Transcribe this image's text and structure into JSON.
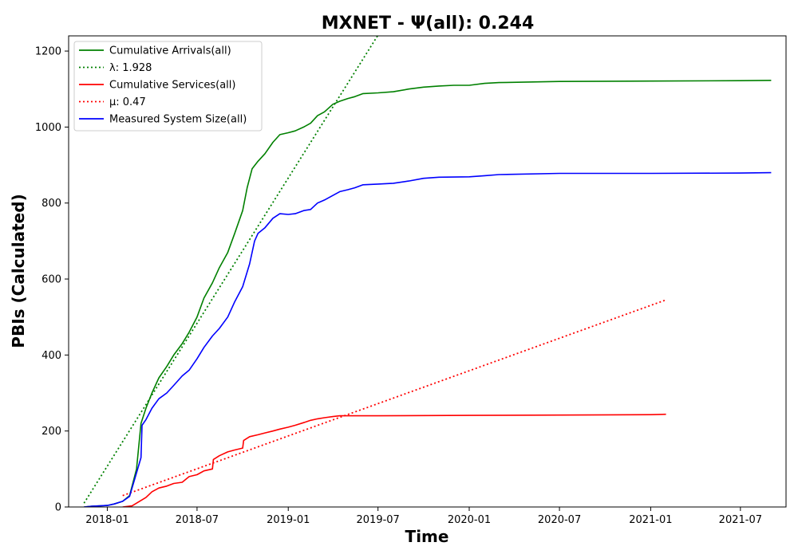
{
  "chart_data": {
    "type": "line",
    "title": "MXNET -  Ψ(all): 0.244",
    "xlabel": "Time",
    "ylabel": "PBIs (Calculated)",
    "xlim": [
      "2017-10-15",
      "2021-10-01"
    ],
    "ylim": [
      0,
      1240
    ],
    "x_ticks": [
      "2018-01",
      "2018-07",
      "2019-01",
      "2019-07",
      "2020-01",
      "2020-07",
      "2021-01",
      "2021-07"
    ],
    "y_ticks": [
      0,
      200,
      400,
      600,
      800,
      1000,
      1200
    ],
    "grid": false,
    "legend_position": "top-left",
    "series": [
      {
        "name": "Cumulative Arrivals(all)",
        "color": "#008000",
        "style": "solid",
        "points": [
          [
            "2017-11-15",
            0
          ],
          [
            "2017-12-01",
            2
          ],
          [
            "2018-01-01",
            4
          ],
          [
            "2018-01-15",
            8
          ],
          [
            "2018-02-01",
            15
          ],
          [
            "2018-02-15",
            30
          ],
          [
            "2018-03-01",
            100
          ],
          [
            "2018-03-10",
            220
          ],
          [
            "2018-03-20",
            260
          ],
          [
            "2018-04-01",
            300
          ],
          [
            "2018-04-15",
            340
          ],
          [
            "2018-05-01",
            370
          ],
          [
            "2018-05-15",
            400
          ],
          [
            "2018-06-01",
            430
          ],
          [
            "2018-06-15",
            460
          ],
          [
            "2018-07-01",
            500
          ],
          [
            "2018-07-15",
            550
          ],
          [
            "2018-08-01",
            590
          ],
          [
            "2018-08-15",
            630
          ],
          [
            "2018-09-01",
            670
          ],
          [
            "2018-09-15",
            720
          ],
          [
            "2018-10-01",
            780
          ],
          [
            "2018-10-10",
            840
          ],
          [
            "2018-10-20",
            890
          ],
          [
            "2018-11-01",
            910
          ],
          [
            "2018-11-15",
            930
          ],
          [
            "2018-12-01",
            960
          ],
          [
            "2018-12-15",
            980
          ],
          [
            "2019-01-01",
            985
          ],
          [
            "2019-01-15",
            990
          ],
          [
            "2019-02-01",
            1000
          ],
          [
            "2019-02-15",
            1010
          ],
          [
            "2019-03-01",
            1030
          ],
          [
            "2019-03-15",
            1040
          ],
          [
            "2019-04-01",
            1060
          ],
          [
            "2019-04-15",
            1068
          ],
          [
            "2019-05-01",
            1075
          ],
          [
            "2019-05-15",
            1080
          ],
          [
            "2019-06-01",
            1088
          ],
          [
            "2019-07-01",
            1090
          ],
          [
            "2019-08-01",
            1093
          ],
          [
            "2019-09-01",
            1100
          ],
          [
            "2019-10-01",
            1105
          ],
          [
            "2019-11-01",
            1108
          ],
          [
            "2019-12-01",
            1110
          ],
          [
            "2020-01-01",
            1110
          ],
          [
            "2020-02-01",
            1115
          ],
          [
            "2020-03-01",
            1117
          ],
          [
            "2020-07-01",
            1120
          ],
          [
            "2021-01-01",
            1121
          ],
          [
            "2021-07-01",
            1122
          ],
          [
            "2021-09-01",
            1123
          ]
        ]
      },
      {
        "name": "λ: 1.928",
        "color": "#008000",
        "style": "dotted",
        "points": [
          [
            "2017-11-15",
            10
          ],
          [
            "2019-06-30",
            1240
          ]
        ]
      },
      {
        "name": "Cumulative Services(all)",
        "color": "#ff0000",
        "style": "solid",
        "points": [
          [
            "2018-02-01",
            0
          ],
          [
            "2018-02-20",
            3
          ],
          [
            "2018-03-01",
            10
          ],
          [
            "2018-03-20",
            25
          ],
          [
            "2018-04-01",
            40
          ],
          [
            "2018-04-15",
            50
          ],
          [
            "2018-05-01",
            55
          ],
          [
            "2018-05-15",
            62
          ],
          [
            "2018-06-01",
            65
          ],
          [
            "2018-06-15",
            80
          ],
          [
            "2018-07-01",
            85
          ],
          [
            "2018-07-15",
            95
          ],
          [
            "2018-08-01",
            100
          ],
          [
            "2018-08-03",
            125
          ],
          [
            "2018-08-15",
            135
          ],
          [
            "2018-09-01",
            145
          ],
          [
            "2018-09-15",
            150
          ],
          [
            "2018-10-01",
            155
          ],
          [
            "2018-10-03",
            175
          ],
          [
            "2018-10-15",
            185
          ],
          [
            "2018-11-01",
            190
          ],
          [
            "2018-11-15",
            195
          ],
          [
            "2018-12-01",
            200
          ],
          [
            "2018-12-15",
            205
          ],
          [
            "2019-01-01",
            210
          ],
          [
            "2019-01-15",
            215
          ],
          [
            "2019-02-01",
            222
          ],
          [
            "2019-02-15",
            228
          ],
          [
            "2019-03-01",
            232
          ],
          [
            "2019-03-15",
            235
          ],
          [
            "2019-04-01",
            238
          ],
          [
            "2019-04-15",
            240
          ],
          [
            "2019-07-01",
            240
          ],
          [
            "2020-01-01",
            241
          ],
          [
            "2020-07-01",
            242
          ],
          [
            "2021-01-01",
            243
          ],
          [
            "2021-02-01",
            244
          ]
        ]
      },
      {
        "name": "μ: 0.47",
        "color": "#ff0000",
        "style": "dotted",
        "points": [
          [
            "2018-02-01",
            30
          ],
          [
            "2021-02-01",
            545
          ]
        ]
      },
      {
        "name": "Measured System Size(all)",
        "color": "#0000ff",
        "style": "solid",
        "points": [
          [
            "2017-11-15",
            0
          ],
          [
            "2017-12-01",
            2
          ],
          [
            "2018-01-01",
            4
          ],
          [
            "2018-01-15",
            8
          ],
          [
            "2018-02-01",
            15
          ],
          [
            "2018-02-15",
            28
          ],
          [
            "2018-03-01",
            90
          ],
          [
            "2018-03-10",
            130
          ],
          [
            "2018-03-12",
            215
          ],
          [
            "2018-03-20",
            230
          ],
          [
            "2018-04-01",
            260
          ],
          [
            "2018-04-15",
            285
          ],
          [
            "2018-05-01",
            300
          ],
          [
            "2018-05-15",
            320
          ],
          [
            "2018-06-01",
            345
          ],
          [
            "2018-06-15",
            360
          ],
          [
            "2018-07-01",
            390
          ],
          [
            "2018-07-15",
            420
          ],
          [
            "2018-08-01",
            450
          ],
          [
            "2018-08-15",
            470
          ],
          [
            "2018-09-01",
            500
          ],
          [
            "2018-09-15",
            540
          ],
          [
            "2018-10-01",
            580
          ],
          [
            "2018-10-15",
            640
          ],
          [
            "2018-10-25",
            700
          ],
          [
            "2018-11-01",
            720
          ],
          [
            "2018-11-15",
            735
          ],
          [
            "2018-12-01",
            760
          ],
          [
            "2018-12-15",
            772
          ],
          [
            "2019-01-01",
            770
          ],
          [
            "2019-01-15",
            772
          ],
          [
            "2019-02-01",
            780
          ],
          [
            "2019-02-15",
            783
          ],
          [
            "2019-03-01",
            800
          ],
          [
            "2019-03-15",
            808
          ],
          [
            "2019-04-01",
            820
          ],
          [
            "2019-04-15",
            830
          ],
          [
            "2019-05-01",
            835
          ],
          [
            "2019-05-15",
            840
          ],
          [
            "2019-06-01",
            848
          ],
          [
            "2019-07-01",
            850
          ],
          [
            "2019-08-01",
            852
          ],
          [
            "2019-09-01",
            858
          ],
          [
            "2019-10-01",
            865
          ],
          [
            "2019-11-01",
            868
          ],
          [
            "2020-01-01",
            869
          ],
          [
            "2020-02-01",
            872
          ],
          [
            "2020-03-01",
            875
          ],
          [
            "2020-07-01",
            878
          ],
          [
            "2021-01-01",
            878
          ],
          [
            "2021-07-01",
            879
          ],
          [
            "2021-09-01",
            880
          ]
        ]
      }
    ]
  }
}
